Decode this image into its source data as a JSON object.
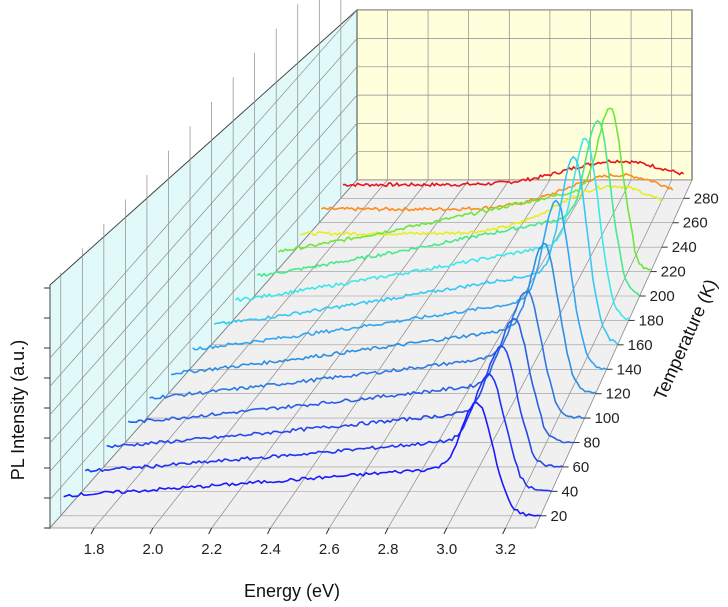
{
  "chart_data": {
    "type": "3d-waterfall-line",
    "xlabel": "Energy (eV)",
    "ylabel": "Temperature (K)",
    "zlabel": "PL Intensity (a.u.)",
    "x_ticks": [
      "1.8",
      "2.0",
      "2.2",
      "2.4",
      "2.6",
      "2.8",
      "3.0",
      "3.2"
    ],
    "y_ticks": [
      "20",
      "40",
      "60",
      "80",
      "100",
      "120",
      "140",
      "160",
      "180",
      "200",
      "220",
      "240",
      "260",
      "280"
    ],
    "xlim": [
      1.65,
      3.3
    ],
    "ylim": [
      10,
      295
    ],
    "grid": true,
    "series": [
      {
        "temperature": 20,
        "color": "#1a1aff",
        "peak_energy": 3.08,
        "peak_intensity": 0.62
      },
      {
        "temperature": 40,
        "color": "#1f33f5",
        "peak_energy": 3.08,
        "peak_intensity": 0.62
      },
      {
        "temperature": 60,
        "color": "#2547ef",
        "peak_energy": 3.08,
        "peak_intensity": 0.62
      },
      {
        "temperature": 80,
        "color": "#2b5ee8",
        "peak_energy": 3.08,
        "peak_intensity": 0.62
      },
      {
        "temperature": 100,
        "color": "#2f78e2",
        "peak_energy": 3.08,
        "peak_intensity": 0.62
      },
      {
        "temperature": 120,
        "color": "#2f8ee0",
        "peak_energy": 3.1,
        "peak_intensity": 0.8
      },
      {
        "temperature": 140,
        "color": "#33a5f0",
        "peak_energy": 3.1,
        "peak_intensity": 0.95
      },
      {
        "temperature": 160,
        "color": "#39c7f4",
        "peak_energy": 3.12,
        "peak_intensity": 1.1
      },
      {
        "temperature": 180,
        "color": "#3fe6ea",
        "peak_energy": 3.12,
        "peak_intensity": 1.0
      },
      {
        "temperature": 200,
        "color": "#49e88a",
        "peak_energy": 3.12,
        "peak_intensity": 0.9
      },
      {
        "temperature": 220,
        "color": "#6de83a",
        "peak_energy": 3.12,
        "peak_intensity": 0.75
      },
      {
        "temperature": 240,
        "color": "#e6ee1f",
        "peak_energy": 3.08,
        "peak_intensity": 0.28
      },
      {
        "temperature": 260,
        "color": "#ff8c1a",
        "peak_energy": 3.05,
        "peak_intensity": 0.2
      },
      {
        "temperature": 280,
        "color": "#e8151a",
        "peak_energy": 2.98,
        "peak_intensity": 0.14
      }
    ]
  }
}
